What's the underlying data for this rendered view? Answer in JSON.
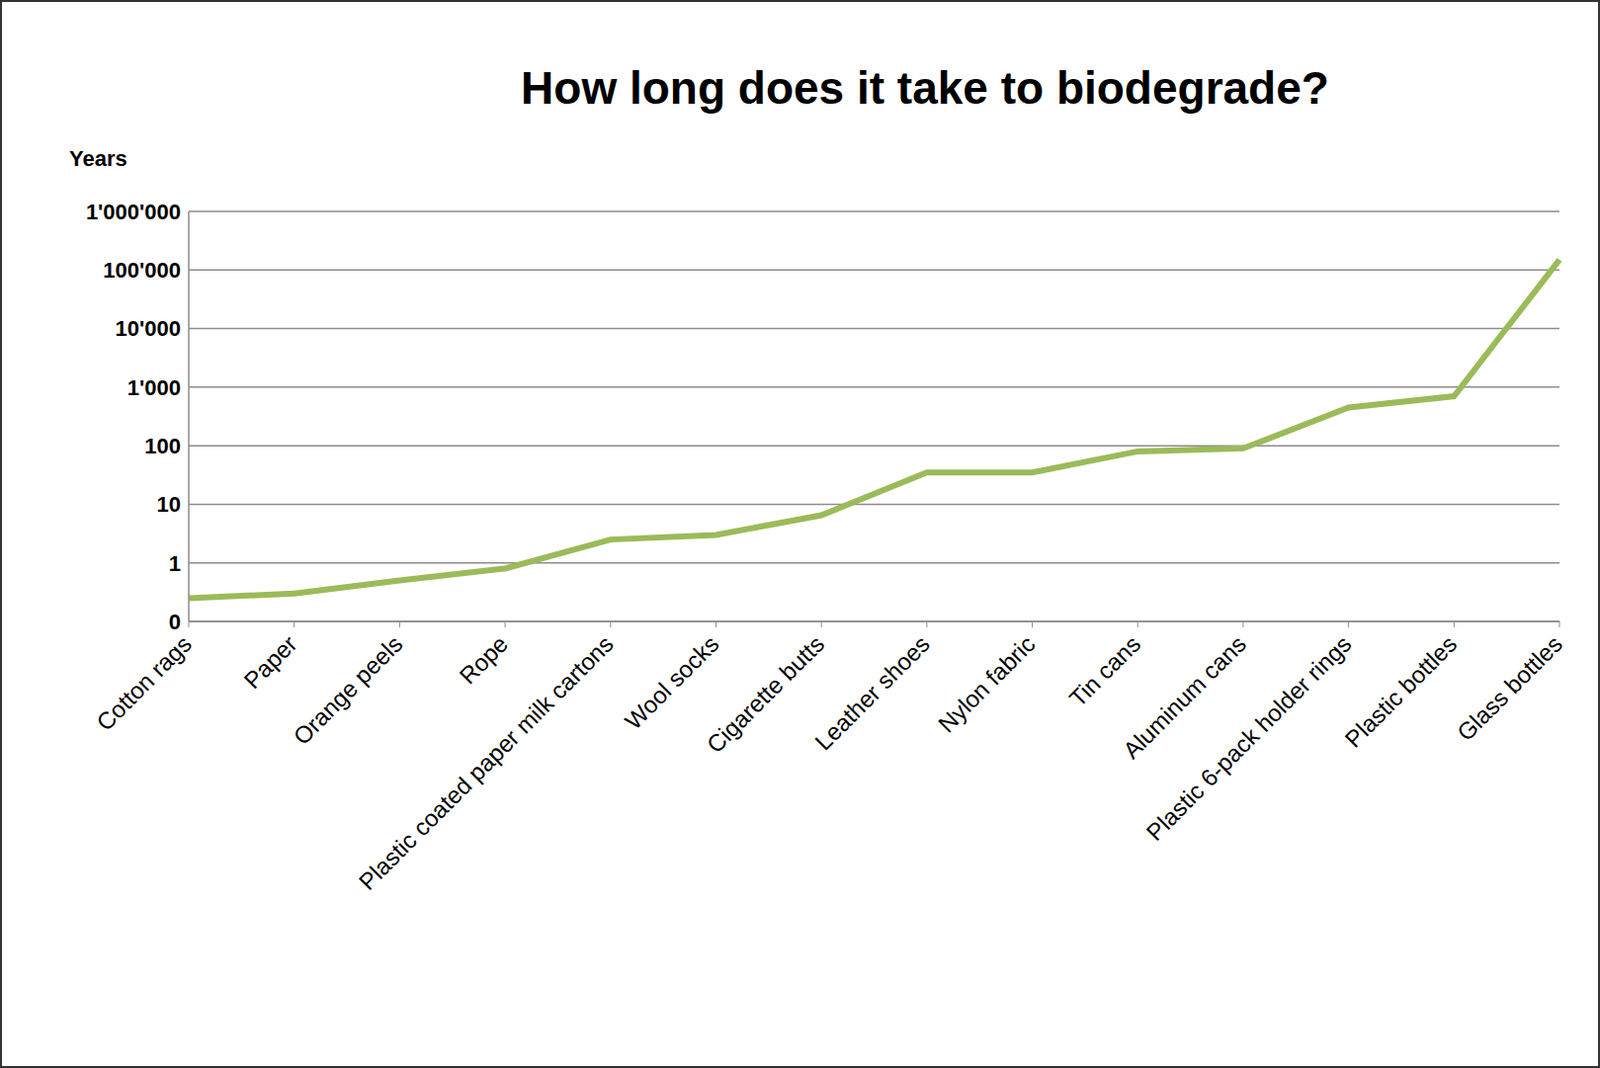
{
  "chart_data": {
    "type": "line",
    "title": "How long does it take to biodegrade?",
    "ylabel": "Years",
    "categories": [
      "Cotton rags",
      "Paper",
      "Orange peels",
      "Rope",
      "Plastic coated paper milk cartons",
      "Wool socks",
      "Cigarette butts",
      "Leather shoes",
      "Nylon fabric",
      "Tin cans",
      "Aluminum cans",
      "Plastic 6-pack holder rings",
      "Plastic bottles",
      "Glass bottles"
    ],
    "values": [
      0.25,
      0.3,
      0.5,
      0.8,
      2.5,
      3,
      6.5,
      35,
      35,
      80,
      90,
      450,
      700,
      150000
    ],
    "color": "#9bbb59",
    "log": "y",
    "ylim": [
      0.1,
      1000000
    ],
    "yticks": [
      {
        "value": 0.1,
        "label": "0"
      },
      1,
      10,
      100,
      {
        "value": 1000,
        "label": "1'000"
      },
      {
        "value": 10000,
        "label": "10'000"
      },
      {
        "value": 100000,
        "label": "100'000"
      },
      {
        "value": 1000000,
        "label": "1'000'000"
      }
    ],
    "grid": true
  }
}
